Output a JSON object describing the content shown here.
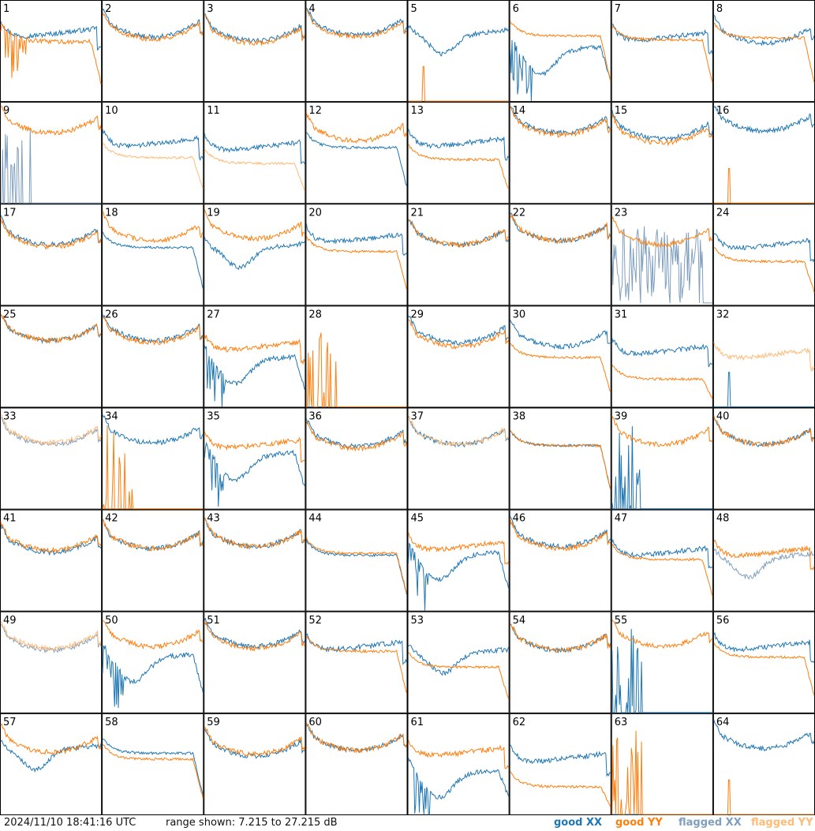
{
  "footer": {
    "timestamp": "2024/11/10 18:41:16 UTC",
    "range": "range shown: 7.215 to 27.215 dB"
  },
  "legend": {
    "good_xx": "good XX",
    "good_yy": "good YY",
    "flagged_xx": "flagged XX",
    "flagged_yy": "flagged YY"
  },
  "colors": {
    "good_xx": "#1f77b4",
    "good_yy": "#ff7f0e",
    "flagged_xx": "#7f9fbf",
    "flagged_yy": "#ffbb78"
  },
  "chart_data": {
    "type": "line",
    "grid_rows": 8,
    "grid_cols": 8,
    "ylim": [
      7.215,
      27.215
    ],
    "y_unit": "dB",
    "series_names": [
      "good XX",
      "good YY",
      "flagged XX",
      "flagged YY"
    ],
    "panels": [
      {
        "label": "1",
        "xx": {
          "status": "good",
          "shape": "bumpy_up",
          "level": 0.7
        },
        "yy": {
          "status": "good",
          "shape": "spiky_dropoff",
          "level": 0.6
        }
      },
      {
        "label": "2",
        "xx": {
          "status": "good",
          "shape": "bowl",
          "level": 0.7
        },
        "yy": {
          "status": "good",
          "shape": "bowl",
          "level": 0.68
        }
      },
      {
        "label": "3",
        "xx": {
          "status": "good",
          "shape": "bowl",
          "level": 0.66
        },
        "yy": {
          "status": "good",
          "shape": "bowl",
          "level": 0.64
        }
      },
      {
        "label": "4",
        "xx": {
          "status": "good",
          "shape": "bowl",
          "level": 0.72
        },
        "yy": {
          "status": "good",
          "shape": "bowl",
          "level": 0.7
        }
      },
      {
        "label": "5",
        "xx": {
          "status": "good",
          "shape": "dip_mid",
          "level": 0.62
        },
        "yy": {
          "status": "good",
          "shape": "dead_spike",
          "level": 0.02
        }
      },
      {
        "label": "6",
        "xx": {
          "status": "good",
          "shape": "dip_mid_dropoff",
          "level": 0.5
        },
        "yy": {
          "status": "good",
          "shape": "plateau_dropoff",
          "level": 0.66
        }
      },
      {
        "label": "7",
        "xx": {
          "status": "good",
          "shape": "bumpy_up",
          "level": 0.66
        },
        "yy": {
          "status": "good",
          "shape": "plateau_dropoff",
          "level": 0.62
        }
      },
      {
        "label": "8",
        "xx": {
          "status": "good",
          "shape": "bowl",
          "level": 0.64
        },
        "yy": {
          "status": "good",
          "shape": "plateau_dropoff",
          "level": 0.64
        }
      },
      {
        "label": "9",
        "xx": {
          "status": "flagged",
          "shape": "dead_spiky",
          "level": 0.1
        },
        "yy": {
          "status": "good",
          "shape": "bowl",
          "level": 0.76
        }
      },
      {
        "label": "10",
        "xx": {
          "status": "good",
          "shape": "bumpy_up",
          "level": 0.62
        },
        "yy": {
          "status": "flagged",
          "shape": "plateau_dropoff",
          "level": 0.46
        }
      },
      {
        "label": "11",
        "xx": {
          "status": "good",
          "shape": "bumpy_up",
          "level": 0.58
        },
        "yy": {
          "status": "flagged",
          "shape": "plateau_dropoff",
          "level": 0.4
        }
      },
      {
        "label": "12",
        "xx": {
          "status": "good",
          "shape": "plateau_dropoff",
          "level": 0.56
        },
        "yy": {
          "status": "good",
          "shape": "bowl",
          "level": 0.68
        }
      },
      {
        "label": "13",
        "xx": {
          "status": "good",
          "shape": "bumpy_up",
          "level": 0.62
        },
        "yy": {
          "status": "good",
          "shape": "plateau_dropoff",
          "level": 0.44
        }
      },
      {
        "label": "14",
        "xx": {
          "status": "good",
          "shape": "bowl",
          "level": 0.76
        },
        "yy": {
          "status": "good",
          "shape": "bowl",
          "level": 0.74
        }
      },
      {
        "label": "15",
        "xx": {
          "status": "good",
          "shape": "bowl",
          "level": 0.7
        },
        "yy": {
          "status": "good",
          "shape": "bowl",
          "level": 0.66
        }
      },
      {
        "label": "16",
        "xx": {
          "status": "good",
          "shape": "bowl",
          "level": 0.78
        },
        "yy": {
          "status": "good",
          "shape": "dead_spike",
          "level": 0.02
        }
      },
      {
        "label": "17",
        "xx": {
          "status": "good",
          "shape": "bowl",
          "level": 0.66
        },
        "yy": {
          "status": "good",
          "shape": "bowl",
          "level": 0.64
        }
      },
      {
        "label": "18",
        "xx": {
          "status": "good",
          "shape": "plateau_dropoff",
          "level": 0.58
        },
        "yy": {
          "status": "good",
          "shape": "bowl",
          "level": 0.7
        }
      },
      {
        "label": "19",
        "xx": {
          "status": "good",
          "shape": "dip_mid",
          "level": 0.52
        },
        "yy": {
          "status": "good",
          "shape": "bowl",
          "level": 0.72
        }
      },
      {
        "label": "20",
        "xx": {
          "status": "good",
          "shape": "bumpy_up",
          "level": 0.68
        },
        "yy": {
          "status": "good",
          "shape": "plateau_dropoff",
          "level": 0.54
        }
      },
      {
        "label": "21",
        "xx": {
          "status": "good",
          "shape": "bowl",
          "level": 0.66
        },
        "yy": {
          "status": "good",
          "shape": "bowl",
          "level": 0.66
        }
      },
      {
        "label": "22",
        "xx": {
          "status": "good",
          "shape": "bowl",
          "level": 0.7
        },
        "yy": {
          "status": "good",
          "shape": "bowl",
          "level": 0.7
        }
      },
      {
        "label": "23",
        "xx": {
          "status": "flagged",
          "shape": "noise",
          "level": 0.4
        },
        "yy": {
          "status": "good",
          "shape": "bowl",
          "level": 0.66
        }
      },
      {
        "label": "24",
        "xx": {
          "status": "good",
          "shape": "bumpy_up",
          "level": 0.62
        },
        "yy": {
          "status": "good",
          "shape": "plateau_dropoff",
          "level": 0.44
        }
      },
      {
        "label": "25",
        "xx": {
          "status": "good",
          "shape": "bowl",
          "level": 0.72
        },
        "yy": {
          "status": "good",
          "shape": "bowl",
          "level": 0.72
        }
      },
      {
        "label": "26",
        "xx": {
          "status": "good",
          "shape": "bowl",
          "level": 0.72
        },
        "yy": {
          "status": "good",
          "shape": "bowl",
          "level": 0.7
        }
      },
      {
        "label": "27",
        "xx": {
          "status": "good",
          "shape": "dip_mid_dropoff",
          "level": 0.46
        },
        "yy": {
          "status": "good",
          "shape": "bumpy_up",
          "level": 0.62
        }
      },
      {
        "label": "28",
        "xx": {
          "status": "good",
          "shape": "dead_flat",
          "level": 0.0
        },
        "yy": {
          "status": "good",
          "shape": "dead_spiky",
          "level": 0.0
        }
      },
      {
        "label": "29",
        "xx": {
          "status": "good",
          "shape": "bowl",
          "level": 0.7
        },
        "yy": {
          "status": "good",
          "shape": "bowl",
          "level": 0.66
        }
      },
      {
        "label": "30",
        "xx": {
          "status": "good",
          "shape": "bowl",
          "level": 0.66
        },
        "yy": {
          "status": "good",
          "shape": "plateau_dropoff",
          "level": 0.5
        }
      },
      {
        "label": "31",
        "xx": {
          "status": "good",
          "shape": "bumpy_up",
          "level": 0.58
        },
        "yy": {
          "status": "good",
          "shape": "plateau_dropoff",
          "level": 0.28
        }
      },
      {
        "label": "32",
        "xx": {
          "status": "good",
          "shape": "dead_spike",
          "level": 0.02
        },
        "yy": {
          "status": "flagged",
          "shape": "bumpy_up",
          "level": 0.54
        }
      },
      {
        "label": "33",
        "xx": {
          "status": "flagged",
          "shape": "bowl",
          "level": 0.7
        },
        "yy": {
          "status": "flagged",
          "shape": "bowl",
          "level": 0.72
        }
      },
      {
        "label": "34",
        "xx": {
          "status": "good",
          "shape": "bowl",
          "level": 0.72
        },
        "yy": {
          "status": "good",
          "shape": "dead_spiky",
          "level": 0.0
        }
      },
      {
        "label": "35",
        "xx": {
          "status": "good",
          "shape": "dip_mid_dropoff",
          "level": 0.52
        },
        "yy": {
          "status": "good",
          "shape": "bumpy_up",
          "level": 0.66
        }
      },
      {
        "label": "36",
        "xx": {
          "status": "good",
          "shape": "bowl",
          "level": 0.68
        },
        "yy": {
          "status": "good",
          "shape": "bowl",
          "level": 0.66
        }
      },
      {
        "label": "37",
        "xx": {
          "status": "good",
          "shape": "bowl",
          "level": 0.7
        },
        "yy": {
          "status": "flagged",
          "shape": "bowl",
          "level": 0.7
        }
      },
      {
        "label": "38",
        "xx": {
          "status": "good",
          "shape": "plateau_dropoff",
          "level": 0.64
        },
        "yy": {
          "status": "good",
          "shape": "plateau_dropoff",
          "level": 0.64
        }
      },
      {
        "label": "39",
        "xx": {
          "status": "good",
          "shape": "dead_spiky",
          "level": 0.0
        },
        "yy": {
          "status": "good",
          "shape": "bowl",
          "level": 0.7
        }
      },
      {
        "label": "40",
        "xx": {
          "status": "good",
          "shape": "bowl",
          "level": 0.7
        },
        "yy": {
          "status": "good",
          "shape": "bowl",
          "level": 0.7
        }
      },
      {
        "label": "41",
        "xx": {
          "status": "good",
          "shape": "bowl",
          "level": 0.64
        },
        "yy": {
          "status": "good",
          "shape": "bowl",
          "level": 0.66
        }
      },
      {
        "label": "42",
        "xx": {
          "status": "good",
          "shape": "bowl",
          "level": 0.68
        },
        "yy": {
          "status": "good",
          "shape": "bowl",
          "level": 0.68
        }
      },
      {
        "label": "43",
        "xx": {
          "status": "good",
          "shape": "bowl",
          "level": 0.7
        },
        "yy": {
          "status": "good",
          "shape": "bowl",
          "level": 0.7
        }
      },
      {
        "label": "44",
        "xx": {
          "status": "good",
          "shape": "plateau_dropoff",
          "level": 0.56
        },
        "yy": {
          "status": "good",
          "shape": "plateau_dropoff",
          "level": 0.58
        }
      },
      {
        "label": "45",
        "xx": {
          "status": "good",
          "shape": "dip_mid_dropoff",
          "level": 0.54
        },
        "yy": {
          "status": "good",
          "shape": "bumpy_up",
          "level": 0.66
        }
      },
      {
        "label": "46",
        "xx": {
          "status": "good",
          "shape": "bowl",
          "level": 0.7
        },
        "yy": {
          "status": "good",
          "shape": "bowl",
          "level": 0.68
        }
      },
      {
        "label": "47",
        "xx": {
          "status": "good",
          "shape": "bumpy_up",
          "level": 0.6
        },
        "yy": {
          "status": "good",
          "shape": "plateau_dropoff",
          "level": 0.52
        }
      },
      {
        "label": "48",
        "xx": {
          "status": "flagged",
          "shape": "dip_mid",
          "level": 0.48
        },
        "yy": {
          "status": "good",
          "shape": "bumpy_up",
          "level": 0.6
        }
      },
      {
        "label": "49",
        "xx": {
          "status": "flagged",
          "shape": "bowl",
          "level": 0.68
        },
        "yy": {
          "status": "flagged",
          "shape": "bowl",
          "level": 0.7
        }
      },
      {
        "label": "50",
        "xx": {
          "status": "good",
          "shape": "dip_mid_dropoff",
          "level": 0.54
        },
        "yy": {
          "status": "good",
          "shape": "bowl",
          "level": 0.72
        }
      },
      {
        "label": "51",
        "xx": {
          "status": "good",
          "shape": "bowl",
          "level": 0.72
        },
        "yy": {
          "status": "good",
          "shape": "bowl",
          "level": 0.7
        }
      },
      {
        "label": "52",
        "xx": {
          "status": "good",
          "shape": "bumpy_up",
          "level": 0.68
        },
        "yy": {
          "status": "good",
          "shape": "plateau_dropoff",
          "level": 0.62
        }
      },
      {
        "label": "53",
        "xx": {
          "status": "good",
          "shape": "dip_mid",
          "level": 0.54
        },
        "yy": {
          "status": "good",
          "shape": "plateau_dropoff",
          "level": 0.46
        }
      },
      {
        "label": "54",
        "xx": {
          "status": "good",
          "shape": "bowl",
          "level": 0.68
        },
        "yy": {
          "status": "good",
          "shape": "bowl",
          "level": 0.68
        }
      },
      {
        "label": "55",
        "xx": {
          "status": "good",
          "shape": "dead_spiky",
          "level": 0.0
        },
        "yy": {
          "status": "good",
          "shape": "bowl",
          "level": 0.72
        }
      },
      {
        "label": "56",
        "xx": {
          "status": "good",
          "shape": "bumpy_up",
          "level": 0.68
        },
        "yy": {
          "status": "good",
          "shape": "plateau_dropoff",
          "level": 0.56
        }
      },
      {
        "label": "57",
        "xx": {
          "status": "good",
          "shape": "dip_mid",
          "level": 0.6
        },
        "yy": {
          "status": "good",
          "shape": "bowl",
          "level": 0.68
        }
      },
      {
        "label": "58",
        "xx": {
          "status": "good",
          "shape": "plateau_dropoff",
          "level": 0.62
        },
        "yy": {
          "status": "good",
          "shape": "plateau_dropoff",
          "level": 0.56
        }
      },
      {
        "label": "59",
        "xx": {
          "status": "good",
          "shape": "bowl",
          "level": 0.64
        },
        "yy": {
          "status": "good",
          "shape": "bowl",
          "level": 0.66
        }
      },
      {
        "label": "60",
        "xx": {
          "status": "good",
          "shape": "bowl",
          "level": 0.7
        },
        "yy": {
          "status": "good",
          "shape": "bowl",
          "level": 0.7
        }
      },
      {
        "label": "61",
        "xx": {
          "status": "good",
          "shape": "dip_mid_dropoff",
          "level": 0.4
        },
        "yy": {
          "status": "good",
          "shape": "bumpy_up",
          "level": 0.64
        }
      },
      {
        "label": "62",
        "xx": {
          "status": "good",
          "shape": "bumpy_up",
          "level": 0.58
        },
        "yy": {
          "status": "good",
          "shape": "plateau_dropoff",
          "level": 0.28
        }
      },
      {
        "label": "63",
        "xx": {
          "status": "good",
          "shape": "dead_flat",
          "level": 0.0
        },
        "yy": {
          "status": "good",
          "shape": "dead_spiky",
          "level": 0.0
        }
      },
      {
        "label": "64",
        "xx": {
          "status": "good",
          "shape": "bowl",
          "level": 0.72
        },
        "yy": {
          "status": "good",
          "shape": "dead_spike",
          "level": 0.02
        }
      }
    ]
  }
}
